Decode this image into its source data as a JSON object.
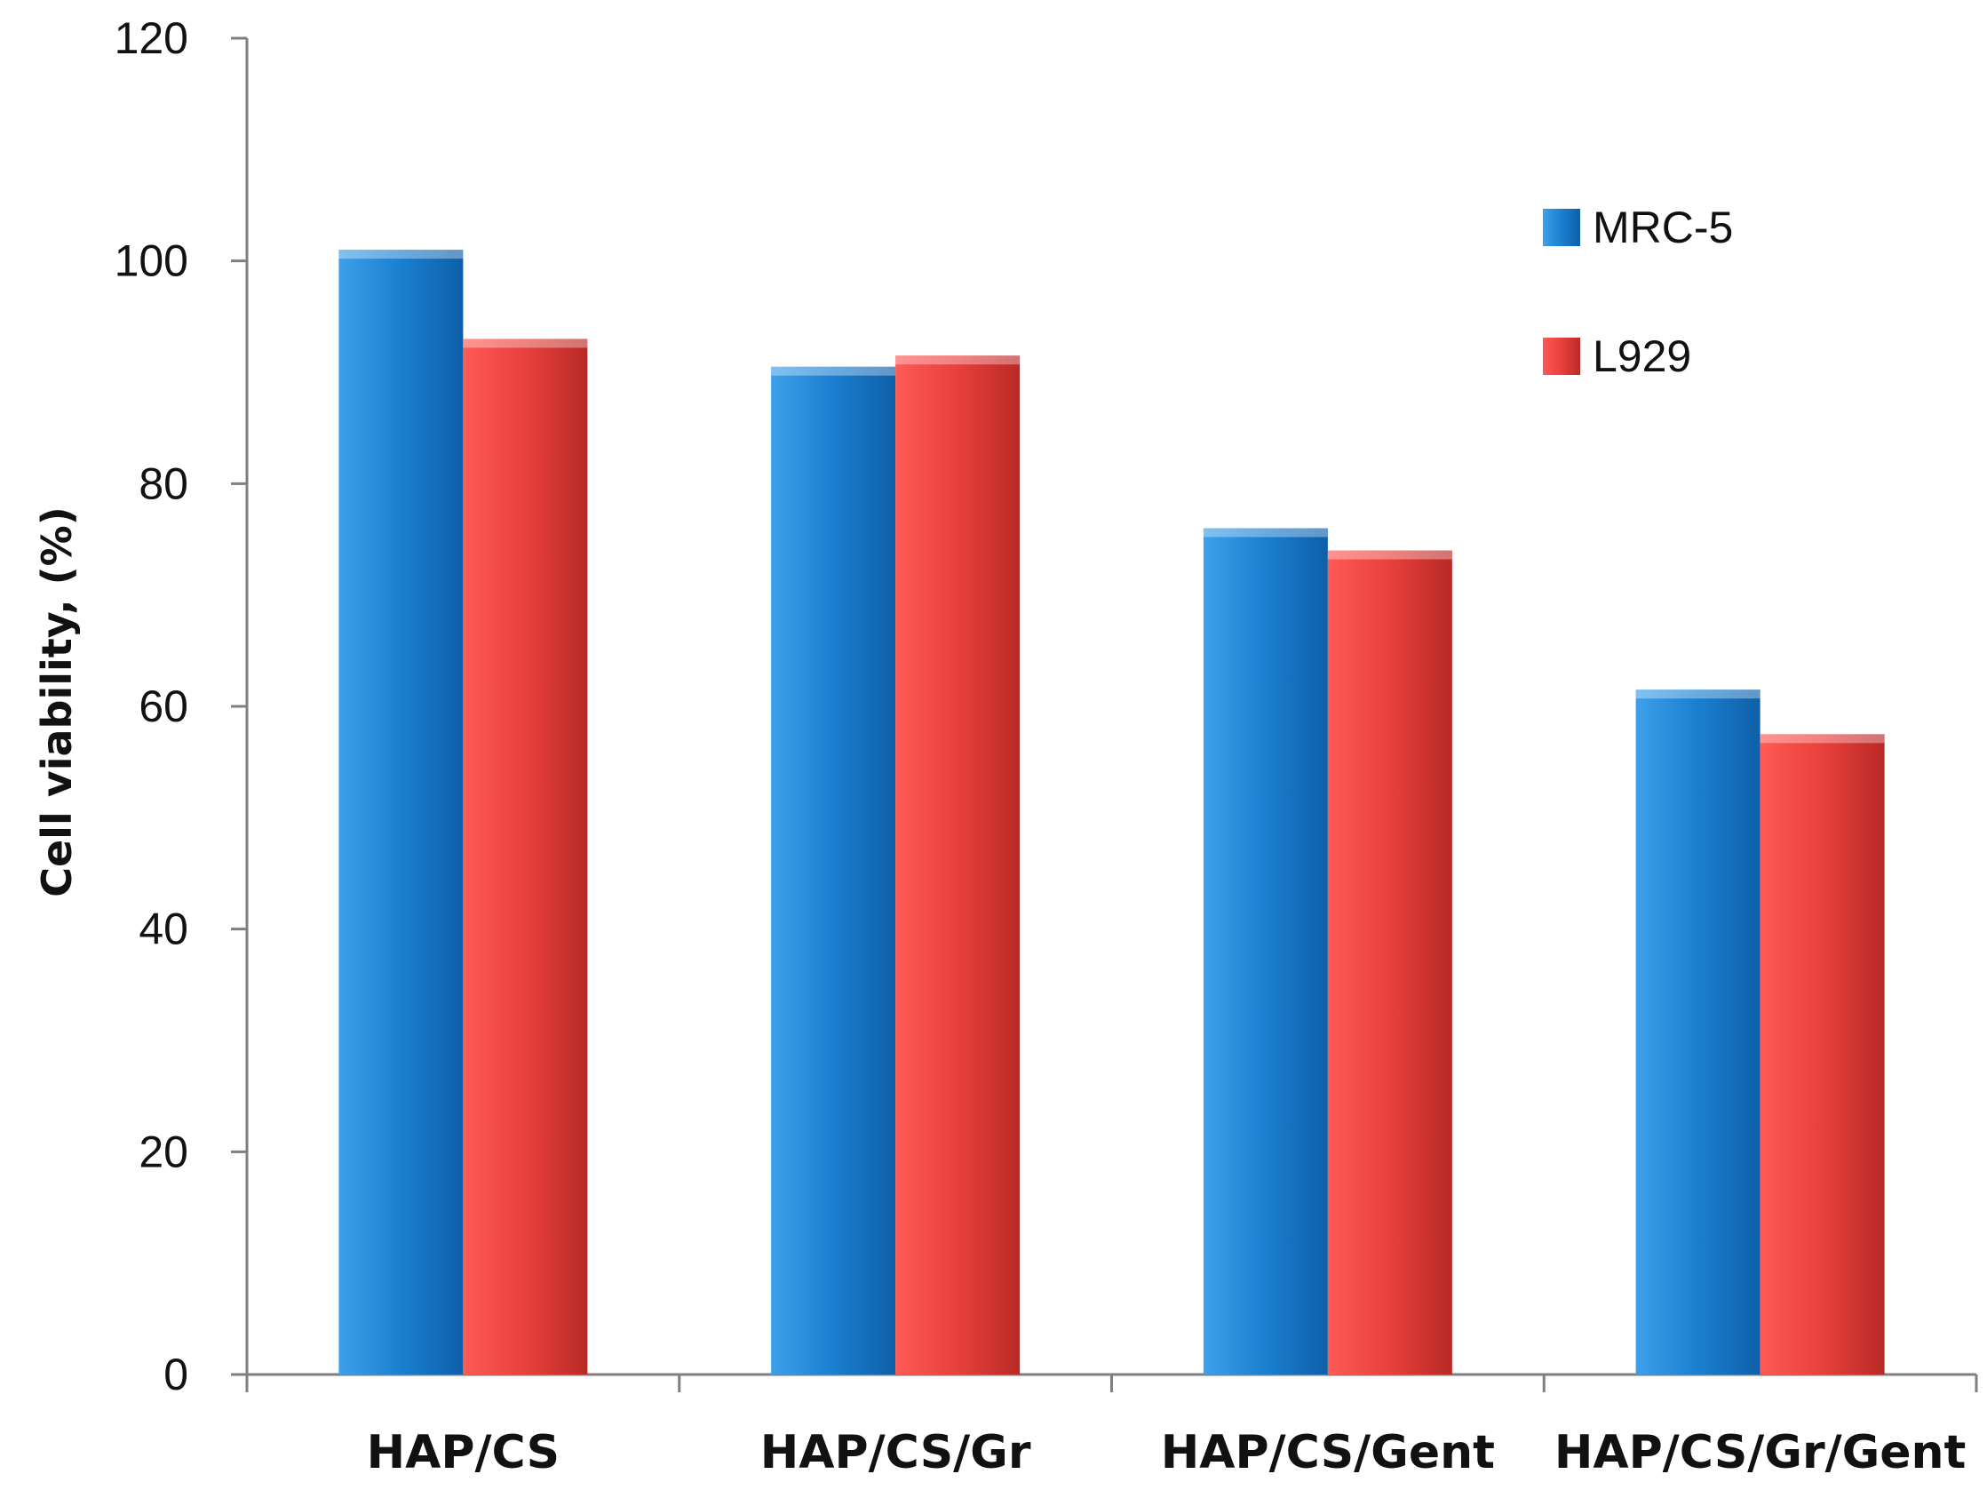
{
  "chart_data": {
    "type": "bar",
    "title": "",
    "xlabel": "",
    "ylabel": "Cell viability, (%)",
    "categories": [
      "HAP/CS",
      "HAP/CS/Gr",
      "HAP/CS/Gent",
      "HAP/CS/Gr/Gent"
    ],
    "series": [
      {
        "name": "MRC-5",
        "values": [
          101,
          90.5,
          76,
          61.5
        ],
        "color": "#1a7fd0"
      },
      {
        "name": "L929",
        "values": [
          93,
          91.5,
          74,
          57.5
        ],
        "color": "#e0403c"
      }
    ],
    "ylim": [
      0,
      120
    ],
    "yticks": [
      0,
      20,
      40,
      60,
      80,
      100,
      120
    ],
    "grid": false,
    "legend_position": "top-right"
  }
}
